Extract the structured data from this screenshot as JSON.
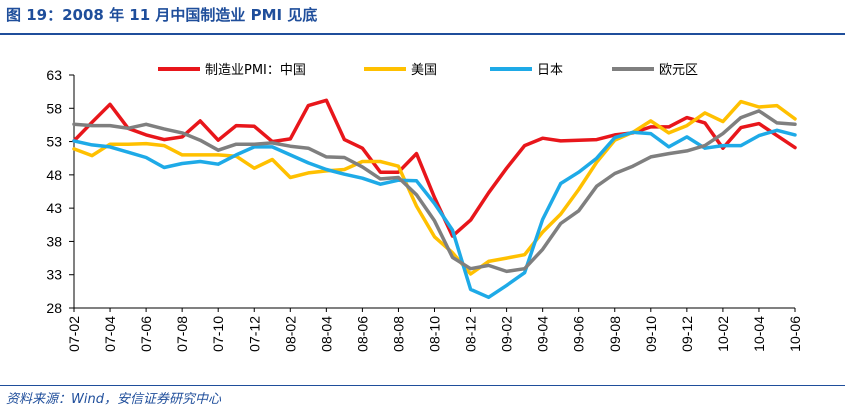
{
  "header": {
    "title": "图 19：2008 年 11 月中国制造业 PMI 见底"
  },
  "footer": {
    "source": "资料来源：Wind，安信证券研究中心"
  },
  "chart_data": {
    "type": "line",
    "title": "图 19：2008 年 11 月中国制造业 PMI 见底",
    "xlabel": "",
    "ylabel": "",
    "ylim": [
      28,
      63
    ],
    "yticks": [
      28,
      33,
      38,
      43,
      48,
      53,
      58,
      63
    ],
    "grid": false,
    "legend_position": "top",
    "x_tick_labels": [
      "07-02",
      "07-04",
      "07-06",
      "07-08",
      "07-10",
      "07-12",
      "08-02",
      "08-04",
      "08-06",
      "08-08",
      "08-10",
      "08-12",
      "09-02",
      "09-04",
      "09-06",
      "09-08",
      "09-10",
      "09-12",
      "10-02",
      "10-04",
      "10-06"
    ],
    "categories": [
      "07-02",
      "07-03",
      "07-04",
      "07-05",
      "07-06",
      "07-07",
      "07-08",
      "07-09",
      "07-10",
      "07-11",
      "07-12",
      "08-01",
      "08-02",
      "08-03",
      "08-04",
      "08-05",
      "08-06",
      "08-07",
      "08-08",
      "08-09",
      "08-10",
      "08-11",
      "08-12",
      "09-01",
      "09-02",
      "09-03",
      "09-04",
      "09-05",
      "09-06",
      "09-07",
      "09-08",
      "09-09",
      "09-10",
      "09-11",
      "09-12",
      "10-01",
      "10-02",
      "10-03",
      "10-04",
      "10-05",
      "10-06"
    ],
    "series": [
      {
        "name": "制造业PMI：中国",
        "color": "#e8161b",
        "values": [
          53.1,
          55.9,
          58.6,
          55.0,
          54.0,
          53.3,
          53.7,
          56.1,
          53.2,
          55.4,
          55.3,
          53.0,
          53.4,
          58.4,
          59.2,
          53.3,
          52.0,
          48.4,
          48.4,
          51.2,
          44.6,
          38.8,
          41.2,
          45.3,
          49.0,
          52.4,
          53.5,
          53.1,
          53.2,
          53.3,
          54.0,
          54.3,
          55.2,
          55.2,
          56.6,
          55.8,
          52.0,
          55.1,
          55.7,
          53.9,
          52.1
        ]
      },
      {
        "name": "美国",
        "color": "#ffc000",
        "values": [
          51.9,
          50.9,
          52.6,
          52.6,
          52.7,
          52.4,
          51.0,
          51.0,
          51.0,
          50.8,
          49.0,
          50.3,
          47.6,
          48.3,
          48.6,
          48.8,
          50.0,
          50.0,
          49.3,
          43.3,
          38.7,
          36.3,
          33.1,
          35.0,
          35.5,
          36.0,
          39.4,
          42.1,
          45.8,
          49.9,
          53.2,
          54.4,
          56.1,
          54.3,
          55.4,
          57.3,
          56.0,
          59.0,
          58.2,
          58.4,
          56.4
        ]
      },
      {
        "name": "日本",
        "color": "#1eaae7",
        "values": [
          53.1,
          52.5,
          52.2,
          51.4,
          50.6,
          49.1,
          49.7,
          50.0,
          49.6,
          51.0,
          52.2,
          52.2,
          51.0,
          49.8,
          48.8,
          48.1,
          47.5,
          46.6,
          47.2,
          47.1,
          43.7,
          39.7,
          30.8,
          29.6,
          31.4,
          33.3,
          41.3,
          46.7,
          48.4,
          50.5,
          53.6,
          54.4,
          54.2,
          52.2,
          53.7,
          52.0,
          52.4,
          52.4,
          53.9,
          54.7,
          54.0
        ]
      },
      {
        "name": "欧元区",
        "color": "#7f7f7f",
        "values": [
          55.6,
          55.4,
          55.4,
          55.0,
          55.6,
          54.9,
          54.3,
          53.2,
          51.7,
          52.6,
          52.6,
          52.8,
          52.3,
          52.0,
          50.7,
          50.6,
          49.2,
          47.4,
          47.6,
          45.0,
          41.1,
          35.6,
          33.9,
          34.4,
          33.5,
          33.9,
          36.8,
          40.7,
          42.6,
          46.3,
          48.2,
          49.3,
          50.7,
          51.2,
          51.6,
          52.4,
          54.2,
          56.6,
          57.6,
          55.8,
          55.6
        ]
      }
    ]
  }
}
